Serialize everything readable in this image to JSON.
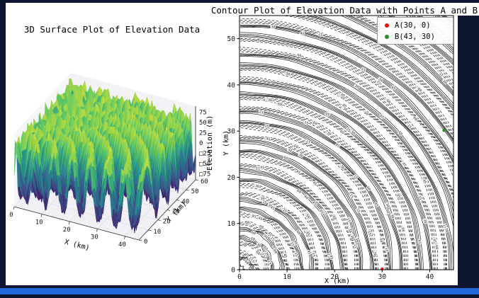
{
  "window": {
    "frame_color": "#0f1730",
    "taskbar_color": "#2169d8",
    "figure_bg": "#ffffff"
  },
  "chart_data": [
    {
      "type": "surface3d",
      "title": "3D Surface Plot of Elevation Data",
      "xlabel": "X (km)",
      "ylabel": "Y (km)",
      "zlabel": "Elevation (m)",
      "x_tick_labels": [
        "0",
        "10",
        "20",
        "30",
        "40"
      ],
      "x_tick_values": [
        0,
        10,
        20,
        30,
        40
      ],
      "y_tick_labels": [
        "0",
        "10",
        "20",
        "30",
        "40",
        "50",
        "60"
      ],
      "y_tick_values": [
        0,
        10,
        20,
        30,
        40,
        50,
        60
      ],
      "z_tick_labels": [
        "75",
        "50",
        "25",
        "0",
        "□25",
        "□50",
        "□75"
      ],
      "z_tick_values": [
        75,
        50,
        25,
        0,
        -25,
        -50,
        -75
      ],
      "x_range": [
        0,
        45
      ],
      "y_range": [
        0,
        60
      ],
      "z_range": [
        -90,
        90
      ],
      "surface_function": "elevation = 75*sin(sqrt(x^2+y^2)) + noise",
      "colormap": "viridis",
      "colormap_stops": [
        "#440154",
        "#3b528b",
        "#21918c",
        "#5ec962",
        "#fde725"
      ]
    },
    {
      "type": "contour",
      "title": "Contour Plot of Elevation Data with Points A and B",
      "xlabel": "X (km)",
      "ylabel": "Y (km)",
      "x_tick_values": [
        0,
        10,
        20,
        30,
        40
      ],
      "y_tick_values": [
        0,
        10,
        20,
        30,
        40,
        50
      ],
      "x_range": [
        0,
        45
      ],
      "y_range": [
        0,
        55
      ],
      "amplitude": 75,
      "levels": [
        -60,
        -45,
        -30,
        -15,
        15,
        30,
        45,
        60
      ],
      "line_color": "#0a0a0a",
      "negative_style": "dashed",
      "contour_center": [
        0,
        0
      ],
      "points": [
        {
          "name": "A",
          "x": 30,
          "y": 0,
          "color": "#f00a0a",
          "label": "A(30, 0)"
        },
        {
          "name": "B",
          "x": 43,
          "y": 30,
          "color": "#2e8b2e",
          "label": "B(43, 30)"
        }
      ],
      "legend": {
        "position": "upper right",
        "entries": [
          {
            "label": "A(30, 0)",
            "color": "#f00a0a"
          },
          {
            "label": "B(43, 30)",
            "color": "#2e8b2e"
          }
        ]
      }
    }
  ]
}
